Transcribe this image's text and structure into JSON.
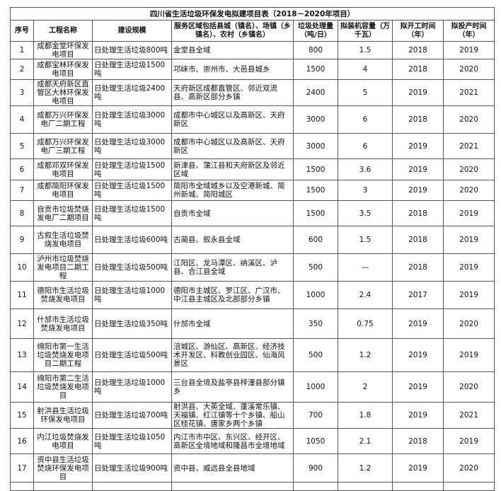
{
  "header": {
    "title": "四川省生活垃圾环保发电拟建项目表（2018－2020年项目）"
  },
  "table": {
    "columns": [
      "序号",
      "工程名称",
      "建设规模",
      "服务区域包括县城（镇名）、场镇（乡镇名）、农村（乡镇名）",
      "垃圾处理量（吨/日）",
      "拟装机容量（万千瓦）",
      "拟开工时间（年）",
      "拟投产时间（年）"
    ],
    "rows": [
      [
        1,
        "成都金堂环保发电项目",
        "日处理生活垃圾800吨",
        "金堂县全域",
        800,
        1.5,
        2018,
        2019
      ],
      [
        2,
        "成都宝林环保发电项目",
        "日处理生活垃圾1500吨",
        "邛崃市、崇州市、大邑县城乡",
        1500,
        4,
        2018,
        2020
      ],
      [
        3,
        "成都天府新区直管区大林环保发电项目",
        "日处理生活垃圾2400吨",
        "天府新区成都直管区、邻近双流县、高新区部分乡镇",
        2400,
        5,
        2019,
        2021
      ],
      [
        4,
        "成都万兴环保发电厂二期工程",
        "日处理生活垃圾3000吨",
        "成都市中心城区以及高新区、天府新区",
        3000,
        6,
        2018,
        2020
      ],
      [
        5,
        "成都万兴环保发电厂三期工程",
        "日处理生活垃圾3000吨",
        "成都市中心城区以及高新区、天府新区",
        3000,
        6,
        2019,
        2021
      ],
      [
        6,
        "成都邓双环保发电项目",
        "日处理生活垃圾1500吨",
        "新津县、蒲江县和天府新区及邻近区域",
        1500,
        3.6,
        2019,
        2020
      ],
      [
        7,
        "成都简阳环保发电项目",
        "日处理生活垃圾1500吨",
        "简阳市全域城乡以及空港新城、简州新城、简阳城区",
        1500,
        3,
        2019,
        2020
      ],
      [
        8,
        "自贡市垃圾焚烧发电厂二期项目",
        "日处理生活垃圾1500吨",
        "自贡市全域",
        1500,
        3.5,
        2018,
        2019
      ],
      [
        9,
        "古叙生活垃圾焚烧发电项目",
        "日处理生活垃圾600吨",
        "古蔺县、叙永县全域",
        600,
        1.5,
        2018,
        2019
      ],
      [
        10,
        "泸州市垃圾焚烧发电项目二期工程",
        "日处理生活垃圾500吨",
        "江阳区、龙马潭区、纳溪区、泸县、合江县全域",
        500,
        "—",
        2018,
        2019
      ],
      [
        11,
        "德阳市生活垃圾焚烧发电项目",
        "日处理生活垃圾1000吨",
        "德阳市主城区、罗江区、广汉市、中江县主城区及北部部分乡镇",
        1000,
        2.4,
        2017,
        2019
      ],
      [
        12,
        "什邡市生活垃圾焚烧发电项目",
        "日处理生活垃圾350吨",
        "什邡市全域",
        350,
        0.75,
        2019,
        2020
      ],
      [
        13,
        "绵阳市第一生活垃圾焚烧发电项目二期工程",
        "日处理生活垃圾500吨",
        "涪城区、游仙区、高新区、经济技术开发区、科教创业园区、仙海风景区",
        500,
        1.2,
        2019,
        2019
      ],
      [
        14,
        "绵阳市第二生活垃圾焚烧发电项目",
        "日处理生活垃圾1000吨",
        "三台县全境及盐亭县梓潼县部分镇乡",
        1000,
        2,
        2019,
        2020
      ],
      [
        15,
        "射洪县生活垃圾环保发电项目",
        "日处理生活垃圾700吨",
        "射洪县、大英全域、蓬溪常乐镇、天福镇、红江镇等十个乡镇、船山区桂花镇、唐家乡两个乡镇",
        700,
        1.8,
        2019,
        2021
      ],
      [
        16,
        "内江垃圾焚烧发电项目",
        "日处理生活垃圾1050吨",
        "内江市市中区、东兴区、经开区、高新区全境地域和隆昌市全境地域",
        1050,
        2.1,
        2018,
        2019
      ],
      [
        17,
        "资中县生活垃圾焚烧环保发电项目",
        "日处理生活垃圾900吨",
        "资中县、威远县全县地域",
        900,
        1.2,
        2019,
        2020
      ]
    ]
  }
}
